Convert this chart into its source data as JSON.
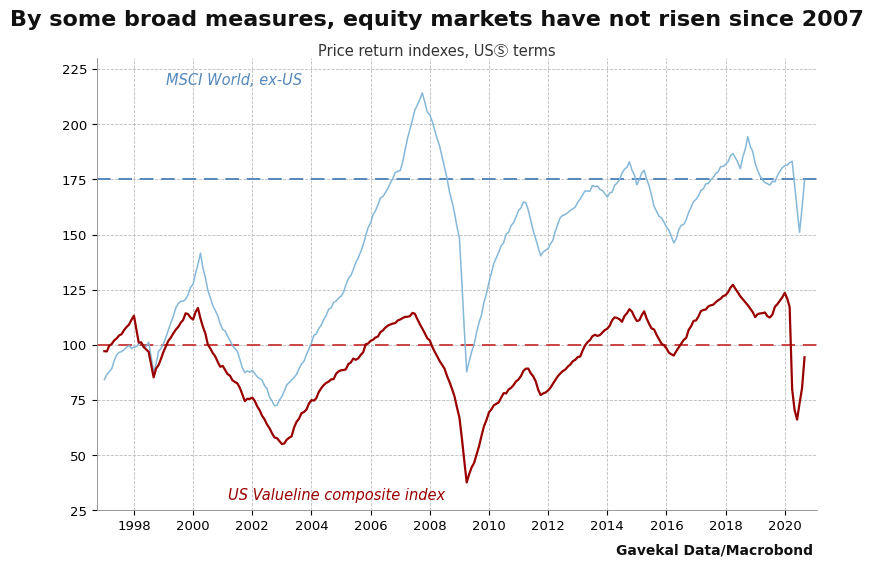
{
  "title": "By some broad measures, equity markets have not risen since 2007",
  "subtitle": "Price return indexes, USⓈ terms",
  "attribution": "Gavekal Data/Macrobond",
  "msci_label": "MSCI World, ex-US",
  "valueline_label": "US Valueline composite index",
  "msci_color": "#85b8d8",
  "valueline_color": "#990000",
  "msci_hline": 175,
  "msci_hline_color": "#5588bb",
  "valueline_hline": 100,
  "valueline_hline_color": "#cc4444",
  "ylim": [
    25,
    230
  ],
  "yticks": [
    25,
    50,
    75,
    100,
    125,
    150,
    175,
    200,
    225
  ],
  "background_color": "#ffffff",
  "grid_color": "#bbbbbb",
  "title_fontsize": 16,
  "subtitle_fontsize": 10.5,
  "label_fontsize": 10.5,
  "attr_fontsize": 10
}
